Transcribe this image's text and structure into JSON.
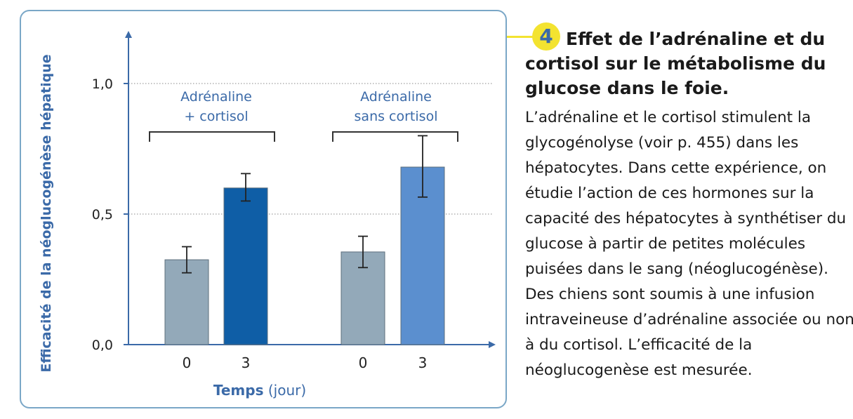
{
  "figure": {
    "number": "4",
    "title": "Effet de l’adrénaline et du cortisol sur le métabolisme du glucose dans le foie.",
    "text": "L’adrénaline et le cortisol stimulent la glycogénolyse (voir p. 455) dans les hépatocytes. Dans cette expérience, on étudie l’action de ces hormones sur la capacité des hépatocytes à synthétiser du glucose à partir de petites molécules puisées dans le sang (néoglucogénèse). Des chiens sont soumis à une infusion intraveineuse d’adrénaline associée ou non à du cortisol. L’efficacité de la néoglucogenèse est mesurée.",
    "accent_color": "#f3e330",
    "number_color": "#3b6aa8"
  },
  "chart_data": {
    "type": "bar",
    "ylabel": "Efficacité de la néoglucogénèse hépatique",
    "xlabel_bold": "Temps",
    "xlabel_unit": "(jour)",
    "ylim": [
      0,
      1.2
    ],
    "yticks": [
      {
        "value": 0.0,
        "label": "0,0"
      },
      {
        "value": 0.5,
        "label": "0,5"
      },
      {
        "value": 1.0,
        "label": "1,0"
      }
    ],
    "grid": "dotted at 0,5 and 1,0",
    "groups": [
      {
        "label_line1": "Adrénaline",
        "label_line2": "+ cortisol",
        "bars": [
          {
            "x_label": "0",
            "value": 0.325,
            "err_low": 0.275,
            "err_high": 0.375,
            "color": "#93a9b9"
          },
          {
            "x_label": "3",
            "value": 0.6,
            "err_low": 0.55,
            "err_high": 0.655,
            "color": "#0f5ea6"
          }
        ]
      },
      {
        "label_line1": "Adrénaline",
        "label_line2": "sans cortisol",
        "bars": [
          {
            "x_label": "0",
            "value": 0.355,
            "err_low": 0.295,
            "err_high": 0.415,
            "color": "#93a9b9"
          },
          {
            "x_label": "3",
            "value": 0.68,
            "err_low": 0.565,
            "err_high": 0.8,
            "color": "#5b8fcf"
          }
        ]
      }
    ],
    "axis_color": "#3b6aa8",
    "label_color": "#3b6aa8"
  }
}
